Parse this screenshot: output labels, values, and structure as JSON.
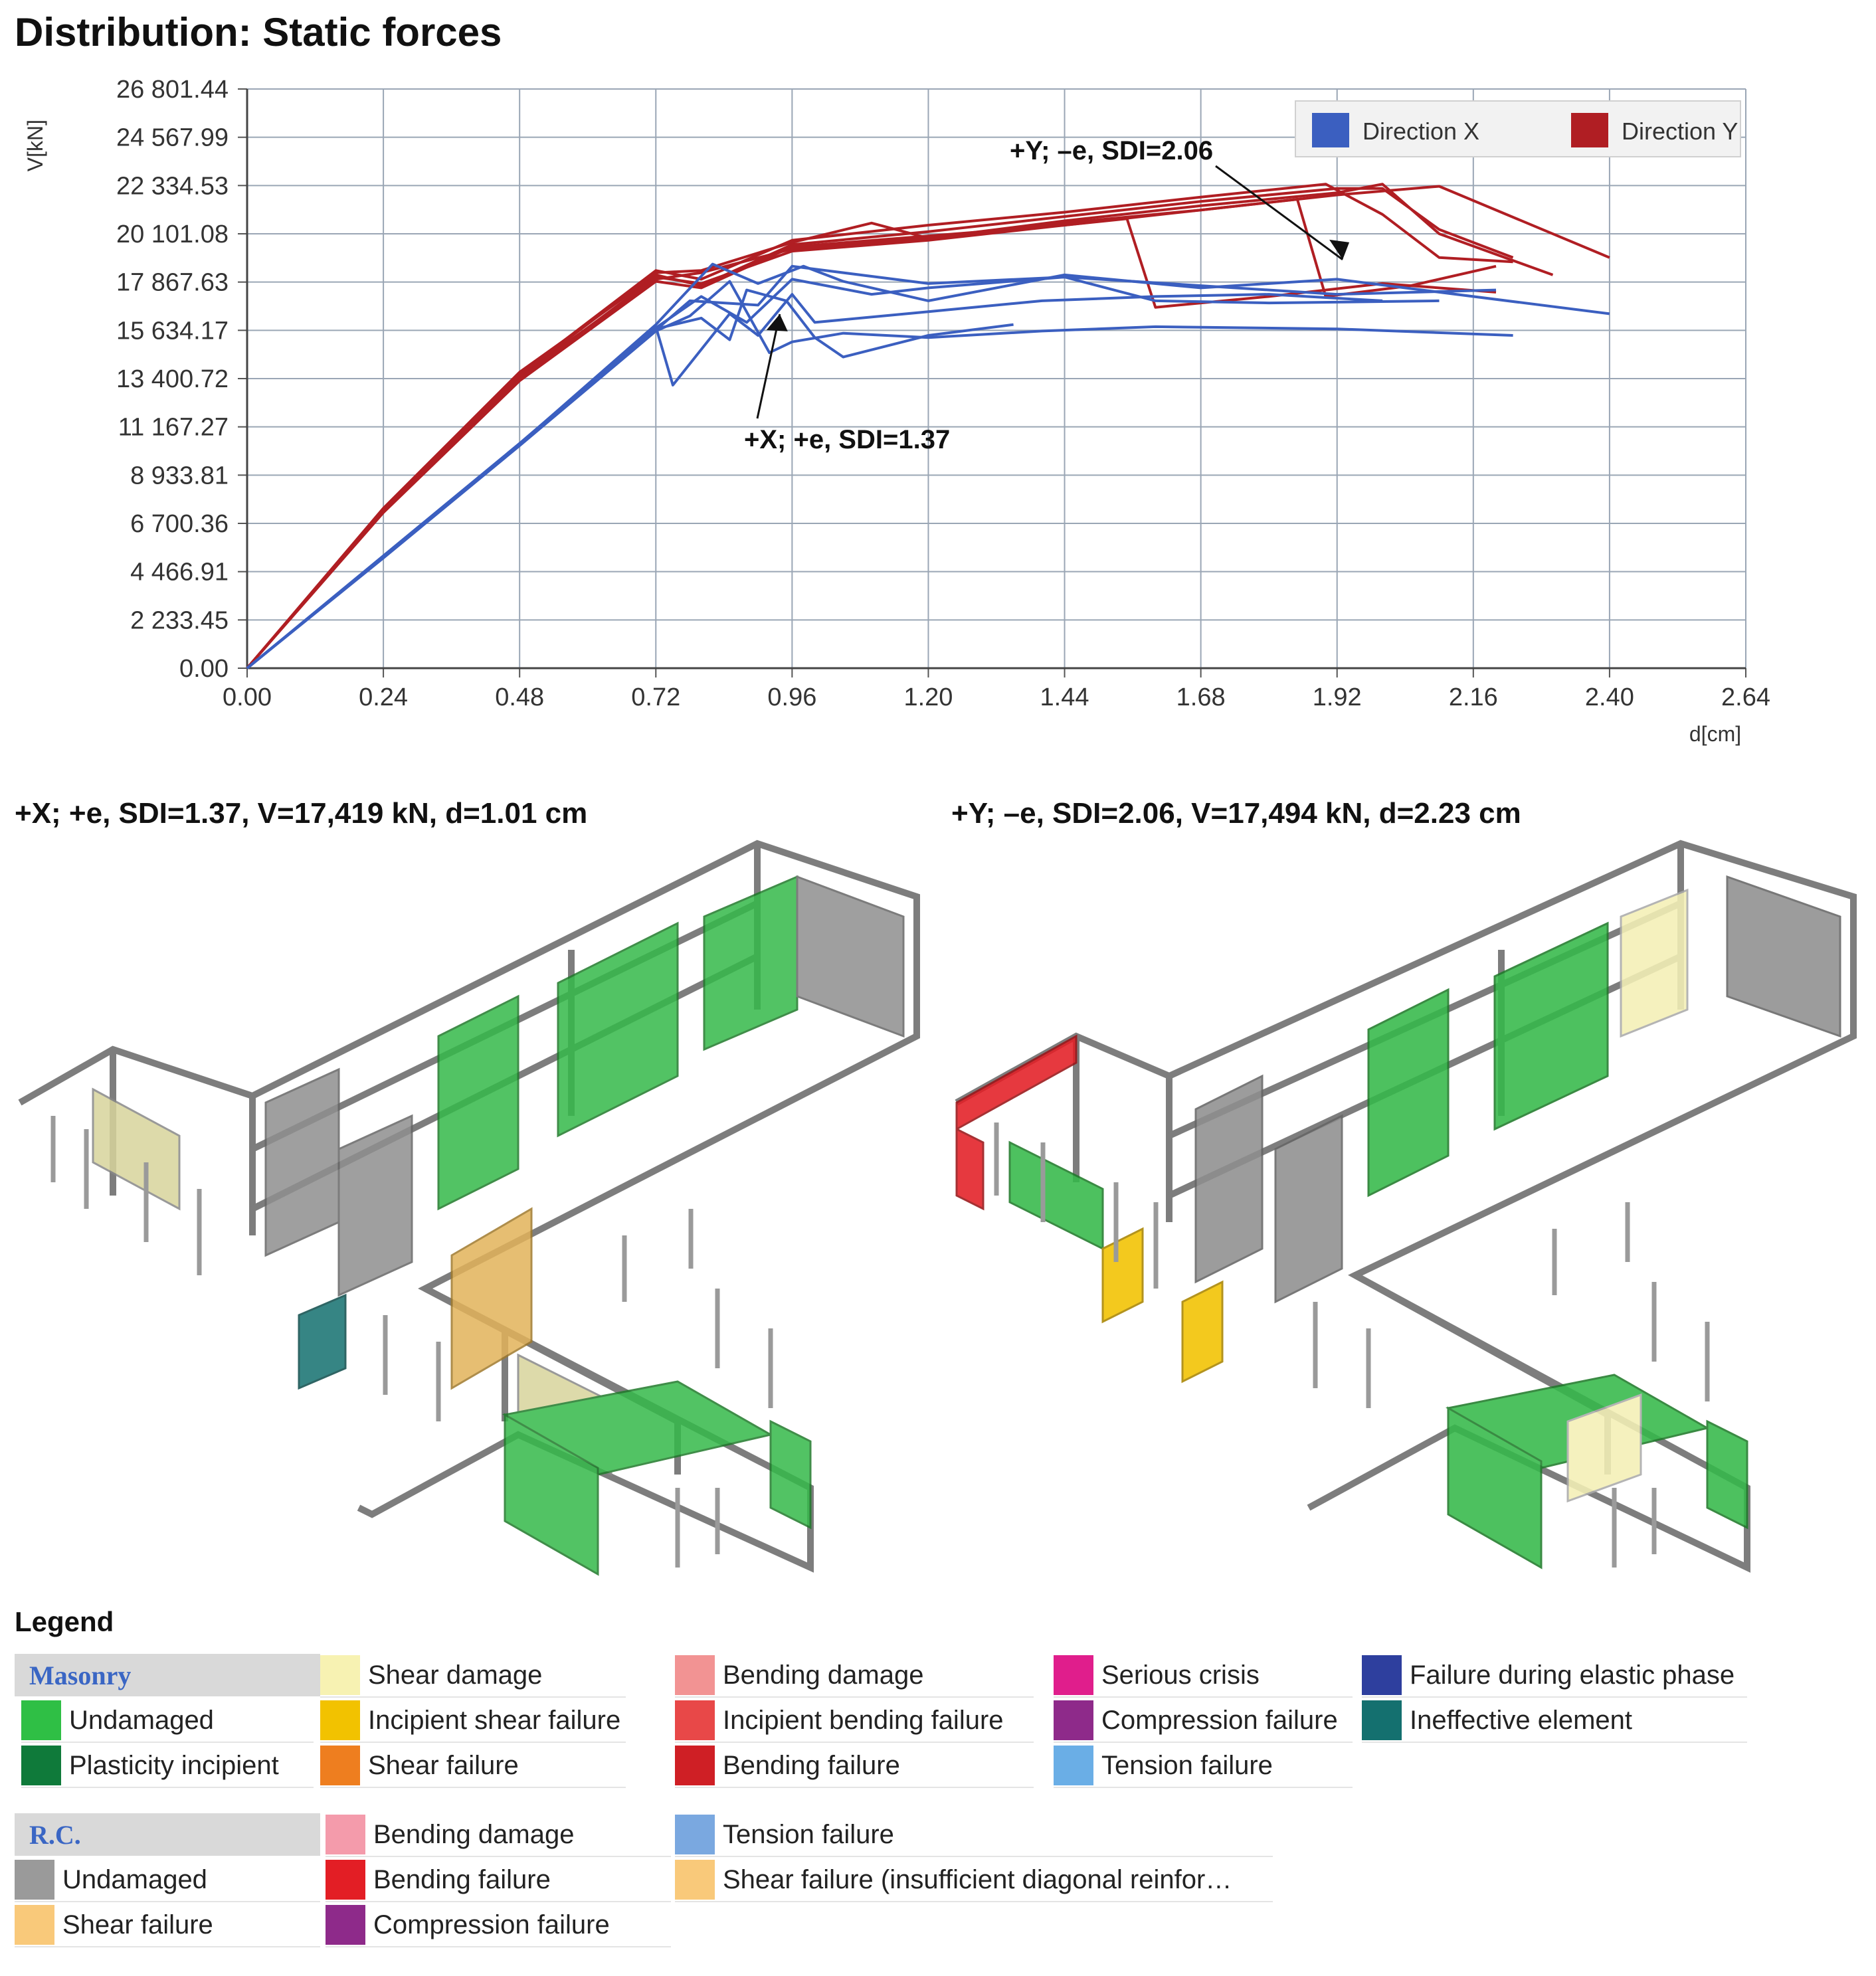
{
  "page_title": "Distribution: Static forces",
  "chart_data": {
    "type": "line",
    "title": "Distribution: Static forces",
    "xlabel": "d[cm]",
    "ylabel": "V[kN]",
    "xlim": [
      0,
      2.64
    ],
    "ylim": [
      0,
      26801.44
    ],
    "x_ticks": [
      0.0,
      0.24,
      0.48,
      0.72,
      0.96,
      1.2,
      1.44,
      1.68,
      1.92,
      2.16,
      2.4,
      2.64
    ],
    "x_tick_labels": [
      "0.00",
      "0.24",
      "0.48",
      "0.72",
      "0.96",
      "1.20",
      "1.44",
      "1.68",
      "1.92",
      "2.16",
      "2.40",
      "2.64"
    ],
    "y_ticks": [
      0,
      2233.45,
      4466.91,
      6700.36,
      8933.81,
      11167.27,
      13400.72,
      15634.17,
      17867.63,
      20101.08,
      22334.53,
      24567.99,
      26801.44
    ],
    "y_tick_labels": [
      "0.00",
      "2 233.45",
      "4 466.91",
      "6 700.36",
      "8 933.81",
      "11 167.27",
      "13 400.72",
      "15 634.17",
      "17 867.63",
      "20 101.08",
      "22 334.53",
      "24 567.99",
      "26 801.44"
    ],
    "grid": true,
    "legend_position": "top-right",
    "legend": [
      {
        "name": "Direction X",
        "color": "#3b5fc0"
      },
      {
        "name": "Direction Y",
        "color": "#b01e23"
      }
    ],
    "annotations": [
      {
        "text": "+Y; –e, SDI=2.06",
        "x": 2.0,
        "y": 18600
      },
      {
        "text": "+X; +e, SDI=1.37",
        "x": 0.95,
        "y": 17000
      }
    ],
    "series": [
      {
        "group": "Direction Y",
        "color": "#b01e23",
        "x": [
          0,
          0.24,
          0.48,
          0.72,
          0.8,
          0.96,
          1.2,
          1.44,
          1.68,
          1.92,
          2.0,
          2.1,
          2.23
        ],
        "y": [
          0,
          7400,
          13700,
          18200,
          17700,
          19600,
          20200,
          20900,
          21600,
          22200,
          22200,
          20300,
          19000
        ]
      },
      {
        "group": "Direction Y",
        "color": "#b01e23",
        "x": [
          0,
          0.24,
          0.48,
          0.72,
          0.8,
          0.96,
          1.2,
          1.44,
          1.68,
          1.92,
          2.0,
          2.1,
          2.3
        ],
        "y": [
          0,
          7300,
          13500,
          18000,
          18300,
          19400,
          19900,
          20700,
          21400,
          22000,
          22400,
          20100,
          18200
        ]
      },
      {
        "group": "Direction Y",
        "color": "#b01e23",
        "x": [
          0,
          0.24,
          0.48,
          0.72,
          0.8,
          0.96,
          1.2,
          1.44,
          1.55,
          1.6,
          1.8,
          2.0,
          2.2
        ],
        "y": [
          0,
          7200,
          13300,
          17900,
          17600,
          19500,
          20000,
          20500,
          20800,
          16700,
          17200,
          17800,
          17400
        ]
      },
      {
        "group": "Direction Y",
        "color": "#b01e23",
        "x": [
          0,
          0.24,
          0.48,
          0.72,
          0.8,
          0.96,
          1.2,
          1.44,
          1.68,
          1.85,
          1.9,
          2.05,
          2.2
        ],
        "y": [
          0,
          7250,
          13400,
          18100,
          17800,
          19300,
          19800,
          20500,
          21200,
          21700,
          17200,
          17700,
          18600
        ]
      },
      {
        "group": "Direction Y",
        "color": "#b01e23",
        "x": [
          0,
          0.24,
          0.48,
          0.72,
          0.8,
          0.96,
          1.2,
          1.44,
          1.68,
          1.9,
          2.0,
          2.1,
          2.23
        ],
        "y": [
          0,
          7350,
          13600,
          18400,
          18000,
          19800,
          20500,
          21100,
          21800,
          22400,
          21000,
          19000,
          18800
        ]
      },
      {
        "group": "Direction Y",
        "color": "#b01e23",
        "x": [
          0,
          0.24,
          0.48,
          0.72,
          0.8,
          0.96,
          1.1,
          1.2,
          1.44,
          1.68,
          1.92,
          2.1,
          2.4
        ],
        "y": [
          0,
          7280,
          13550,
          18300,
          18400,
          19700,
          20600,
          19900,
          20600,
          21200,
          21900,
          22300,
          19000
        ]
      },
      {
        "group": "Direction X",
        "color": "#3b5fc0",
        "x": [
          0,
          0.24,
          0.48,
          0.72,
          0.75,
          0.85,
          0.9,
          0.96,
          1.0,
          1.2,
          1.4,
          1.6,
          1.8,
          2.0
        ],
        "y": [
          0,
          5200,
          10400,
          15800,
          13100,
          16400,
          15400,
          17300,
          16000,
          16500,
          17000,
          17200,
          17300,
          17000
        ]
      },
      {
        "group": "Direction X",
        "color": "#3b5fc0",
        "x": [
          0,
          0.24,
          0.48,
          0.72,
          0.78,
          0.85,
          0.92,
          0.96,
          1.05,
          1.2,
          1.4,
          1.6,
          1.92,
          2.23
        ],
        "y": [
          0,
          5100,
          10300,
          15600,
          16300,
          17900,
          14600,
          15100,
          15500,
          15300,
          15600,
          15800,
          15700,
          15400
        ]
      },
      {
        "group": "Direction X",
        "color": "#3b5fc0",
        "x": [
          0,
          0.24,
          0.48,
          0.72,
          0.8,
          0.85,
          0.88,
          0.95,
          1.0,
          1.05,
          1.2,
          1.35
        ],
        "y": [
          0,
          5150,
          10350,
          15700,
          16200,
          15200,
          17500,
          17000,
          15300,
          14400,
          15400,
          15900
        ]
      },
      {
        "group": "Direction X",
        "color": "#3b5fc0",
        "x": [
          0,
          0.24,
          0.48,
          0.72,
          0.82,
          0.9,
          0.98,
          1.05,
          1.2,
          1.44,
          1.68,
          1.92,
          2.4
        ],
        "y": [
          0,
          5180,
          10380,
          15900,
          18700,
          17800,
          18600,
          17900,
          17000,
          18200,
          17600,
          18000,
          16400
        ]
      },
      {
        "group": "Direction X",
        "color": "#3b5fc0",
        "x": [
          0,
          0.24,
          0.48,
          0.72,
          0.8,
          0.88,
          0.96,
          1.1,
          1.2,
          1.44,
          1.6,
          1.8,
          2.1
        ],
        "y": [
          0,
          5120,
          10320,
          15750,
          17200,
          16000,
          18000,
          17300,
          17600,
          18100,
          17000,
          16900,
          17000
        ]
      },
      {
        "group": "Direction X",
        "color": "#3b5fc0",
        "x": [
          0,
          0.24,
          0.48,
          0.72,
          0.78,
          0.9,
          0.96,
          1.2,
          1.44,
          1.68,
          1.92,
          2.2
        ],
        "y": [
          0,
          5140,
          10360,
          15650,
          17000,
          16800,
          18600,
          17800,
          18100,
          17700,
          17300,
          17500
        ]
      }
    ]
  },
  "panels": {
    "left_title": "+X; +e, SDI=1.37, V=17,419 kN, d=1.01 cm",
    "right_title": "+Y; –e, SDI=2.06, V=17,494 kN, d=2.23 cm"
  },
  "legend": {
    "title": "Legend",
    "masonry_header": "Masonry",
    "rc_header": "R.C.",
    "masonry": [
      {
        "label": "Undamaged",
        "color": "#2fbf45"
      },
      {
        "label": "Plasticity incipient",
        "color": "#0f7a3a"
      },
      {
        "label": "Shear damage",
        "color": "#f7f2b2"
      },
      {
        "label": "Incipient shear failure",
        "color": "#f2c200"
      },
      {
        "label": "Shear failure",
        "color": "#ee7e1f"
      },
      {
        "label": "Bending damage",
        "color": "#f29393"
      },
      {
        "label": "Incipient bending failure",
        "color": "#e84848"
      },
      {
        "label": "Bending failure",
        "color": "#cf1f25"
      },
      {
        "label": "Serious crisis",
        "color": "#e01e8c"
      },
      {
        "label": "Compression failure",
        "color": "#8e2a8a"
      },
      {
        "label": "Tension failure",
        "color": "#6aaee6"
      },
      {
        "label": "Failure during elastic phase",
        "color": "#2e3f9e"
      },
      {
        "label": "Ineffective element",
        "color": "#14706f"
      }
    ],
    "rc": [
      {
        "label": "Undamaged",
        "color": "#9a9a9a"
      },
      {
        "label": "Shear failure",
        "color": "#f9c97a"
      },
      {
        "label": "Bending damage",
        "color": "#f49bab"
      },
      {
        "label": "Bending failure",
        "color": "#e31e25"
      },
      {
        "label": "Compression failure",
        "color": "#8e2a8a"
      },
      {
        "label": "Tension failure",
        "color": "#7aa8e0"
      },
      {
        "label": "Shear failure (insufficient diagonal reinfor…",
        "color": "#f9c97a"
      }
    ]
  }
}
